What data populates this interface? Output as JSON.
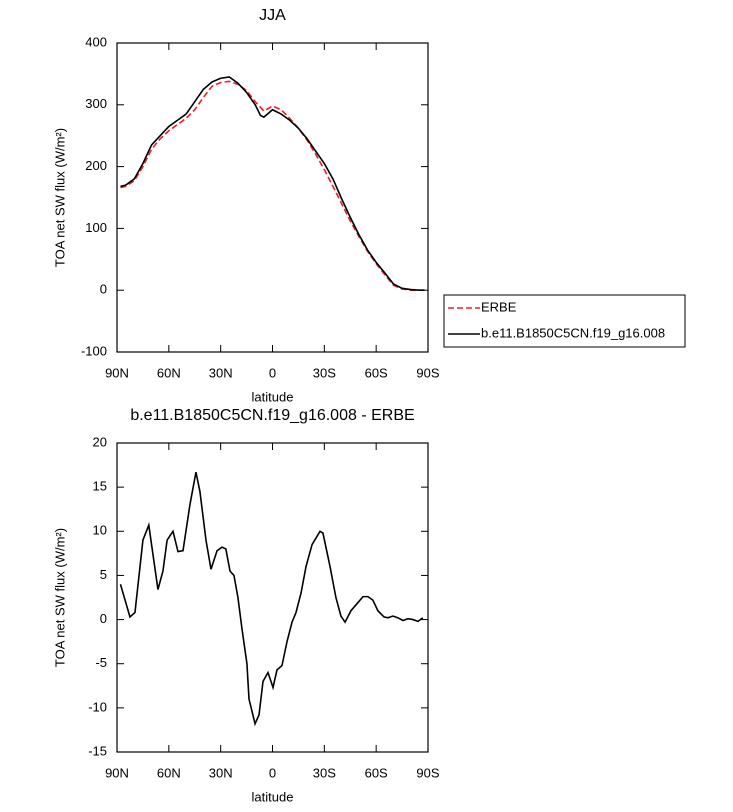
{
  "chart_data": [
    {
      "type": "line",
      "title": "JJA",
      "xlabel": "latitude",
      "ylabel": "TOA net SW flux (W/m²)",
      "x": [
        88,
        85,
        80,
        75,
        70,
        65,
        60,
        55,
        50,
        45,
        40,
        35,
        30,
        25,
        20,
        15,
        10,
        7,
        5,
        0,
        -5,
        -10,
        -15,
        -20,
        -25,
        -30,
        -35,
        -40,
        -45,
        -50,
        -55,
        -60,
        -65,
        -70,
        -75,
        -80,
        -85,
        -88
      ],
      "series": [
        {
          "name": "ERBE",
          "color": "#e8202a",
          "linestyle": "dashed",
          "values": [
            166,
            168,
            177,
            200,
            228,
            245,
            258,
            268,
            278,
            292,
            312,
            330,
            336,
            338,
            333,
            323,
            305,
            296,
            290,
            298,
            292,
            278,
            262,
            243,
            220,
            195,
            168,
            140,
            112,
            87,
            63,
            43,
            25,
            8,
            2,
            0,
            0,
            0
          ]
        },
        {
          "name": "b.e11.B1850C5CN.f19_g16.008",
          "color": "#000000",
          "linestyle": "solid",
          "values": [
            168,
            170,
            180,
            205,
            235,
            250,
            265,
            275,
            285,
            305,
            325,
            337,
            343,
            345,
            335,
            320,
            300,
            283,
            280,
            292,
            285,
            275,
            262,
            245,
            225,
            205,
            180,
            148,
            118,
            90,
            65,
            45,
            28,
            10,
            3,
            1,
            0,
            0
          ]
        }
      ],
      "xlim": [
        90,
        -90
      ],
      "xticks": [
        {
          "value": 90,
          "label": "90N"
        },
        {
          "value": 60,
          "label": "60N"
        },
        {
          "value": 30,
          "label": "30N"
        },
        0,
        {
          "value": -30,
          "label": "30S"
        },
        {
          "value": -60,
          "label": "60S"
        },
        {
          "value": -90,
          "label": "90S"
        }
      ],
      "ylim": [
        -100,
        400
      ],
      "yticks": [
        -100,
        0,
        100,
        200,
        300,
        400
      ],
      "grid": false,
      "legend": "outside-right"
    },
    {
      "type": "line",
      "title": "b.e11.B1850C5CN.f19_g16.008 - ERBE",
      "xlabel": "latitude",
      "ylabel": "TOA net SW flux (W/m²)",
      "x": [
        88,
        82.5,
        79.6,
        75,
        71.6,
        66.3,
        63.4,
        61,
        57.6,
        54.7,
        51.8,
        47.8,
        44.3,
        42,
        38.5,
        35.6,
        32.1,
        29.2,
        27,
        24.6,
        22.3,
        20,
        17.7,
        14.8,
        13.6,
        10.1,
        7.8,
        5.5,
        2.6,
        -0.3,
        -2.6,
        -5.5,
        -8.4,
        -11.3,
        -13.6,
        -16.5,
        -19.4,
        -22.9,
        -27.5,
        -29.2,
        -33.3,
        -36.7,
        -39.6,
        -42,
        -45.4,
        -48.9,
        -52.4,
        -55.2,
        -58.1,
        -61,
        -64.5,
        -66.8,
        -69.7,
        -72.6,
        -75.5,
        -78.4,
        -81.3,
        -84.2,
        -87
      ],
      "values": [
        4,
        0.3,
        0.8,
        9,
        10.7,
        3.4,
        5.5,
        9,
        10,
        7.7,
        7.8,
        13,
        16.7,
        14.5,
        9,
        5.7,
        7.8,
        8.2,
        8,
        5.5,
        5,
        2.5,
        -1,
        -5,
        -9,
        -11.8,
        -10.8,
        -7,
        -6,
        -7.7,
        -5.7,
        -5.2,
        -2.5,
        -0.3,
        0.8,
        3,
        6,
        8.5,
        10,
        9.8,
        6,
        2.5,
        0.4,
        -0.3,
        1,
        1.8,
        2.6,
        2.6,
        2.2,
        1,
        0.3,
        0.2,
        0.4,
        0.2,
        -0.1,
        0.1,
        0,
        -0.2,
        0.2
      ],
      "color": "#000000",
      "xlim": [
        90,
        -90
      ],
      "xticks": [
        {
          "value": 90,
          "label": "90N"
        },
        {
          "value": 60,
          "label": "60N"
        },
        {
          "value": 30,
          "label": "30N"
        },
        0,
        {
          "value": -30,
          "label": "30S"
        },
        {
          "value": -60,
          "label": "60S"
        },
        {
          "value": -90,
          "label": "90S"
        }
      ],
      "ylim": [
        -15,
        20
      ],
      "yticks": [
        -15,
        -10,
        -5,
        0,
        5,
        10,
        15,
        20
      ],
      "grid": false
    }
  ]
}
